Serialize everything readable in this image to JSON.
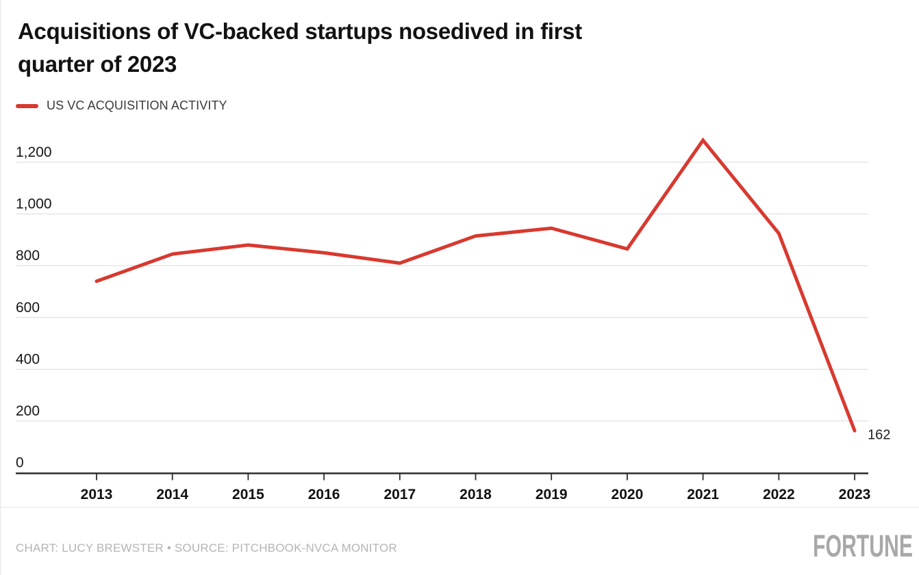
{
  "header": {
    "title_line1": "Acquisitions of VC-backed startups nosedived in first",
    "title_line2": "quarter of 2023",
    "legend": {
      "label": "US VC ACQUISITION ACTIVITY",
      "color": "#d8392f"
    }
  },
  "chart_data": {
    "type": "line",
    "title": "Acquisitions of VC-backed startups nosedived in first quarter of 2023",
    "categories": [
      "2013",
      "2014",
      "2015",
      "2016",
      "2017",
      "2018",
      "2019",
      "2020",
      "2021",
      "2022",
      "2023"
    ],
    "series": [
      {
        "name": "US VC ACQUISITION ACTIVITY",
        "values": [
          740,
          845,
          880,
          850,
          810,
          915,
          945,
          865,
          1285,
          925,
          162
        ]
      }
    ],
    "end_label": "162",
    "xlabel": "",
    "ylabel": "",
    "ylim": [
      0,
      1300
    ],
    "yticks": [
      0,
      200,
      400,
      600,
      800,
      1000,
      1200
    ],
    "ytick_labels": [
      "0",
      "200",
      "400",
      "600",
      "800",
      "1,000",
      "1,200"
    ],
    "grid": "horizontal",
    "legend_position": "top-left",
    "line_color": "#d8392f",
    "gridline_color": "#d9d9d9",
    "axis_color": "#2b2b2b"
  },
  "footer": {
    "credit": "CHART: LUCY BREWSTER • SOURCE: PITCHBOOK-NVCA MONITOR",
    "logo": "FORTUNE",
    "logo_color": "#a8a8a8"
  }
}
